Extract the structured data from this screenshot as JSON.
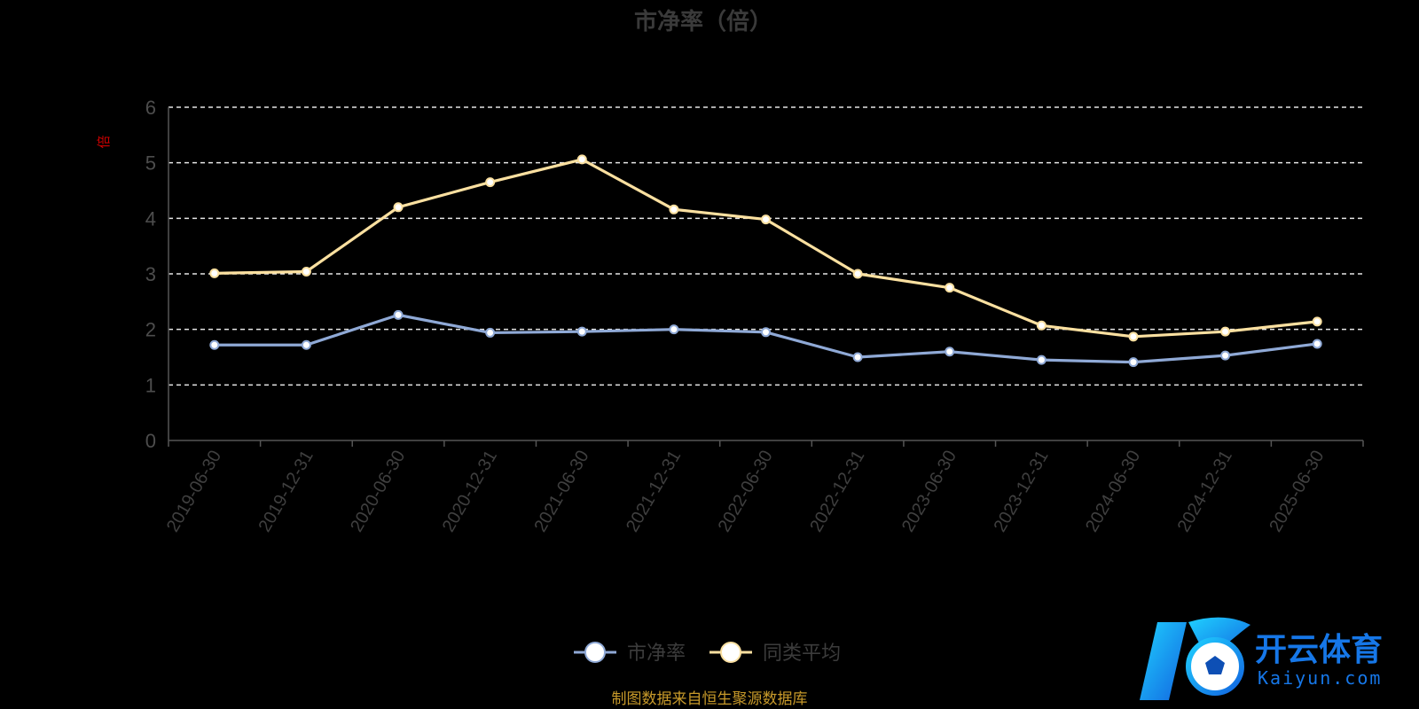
{
  "chart_data": {
    "type": "line",
    "title": "市净率（倍）",
    "ylabel": "倍",
    "xlabel": "",
    "ylim": [
      0,
      6
    ],
    "yticks": [
      0,
      1,
      2,
      3,
      4,
      5,
      6
    ],
    "grid": true,
    "legend_position": "bottom",
    "categories": [
      "2019-06-30",
      "2019-12-31",
      "2020-06-30",
      "2020-12-31",
      "2021-06-30",
      "2021-12-31",
      "2022-06-30",
      "2022-12-31",
      "2023-06-30",
      "2023-12-31",
      "2024-06-30",
      "2024-12-31",
      "2025-06-30"
    ],
    "series": [
      {
        "name": "市净率",
        "color": "#8fa9d6",
        "values": [
          1.72,
          1.72,
          2.26,
          1.94,
          1.96,
          2.0,
          1.95,
          1.5,
          1.6,
          1.45,
          1.41,
          1.53,
          1.74
        ]
      },
      {
        "name": "同类平均",
        "color": "#fbe0a0",
        "values": [
          3.01,
          3.04,
          4.2,
          4.65,
          5.06,
          4.16,
          3.98,
          3.0,
          2.75,
          2.07,
          1.87,
          1.96,
          2.14
        ]
      }
    ]
  },
  "source": "制图数据来自恒生聚源数据库",
  "watermark": {
    "brand_cn": "开云体育",
    "brand_en": "Kaiyun.com"
  }
}
